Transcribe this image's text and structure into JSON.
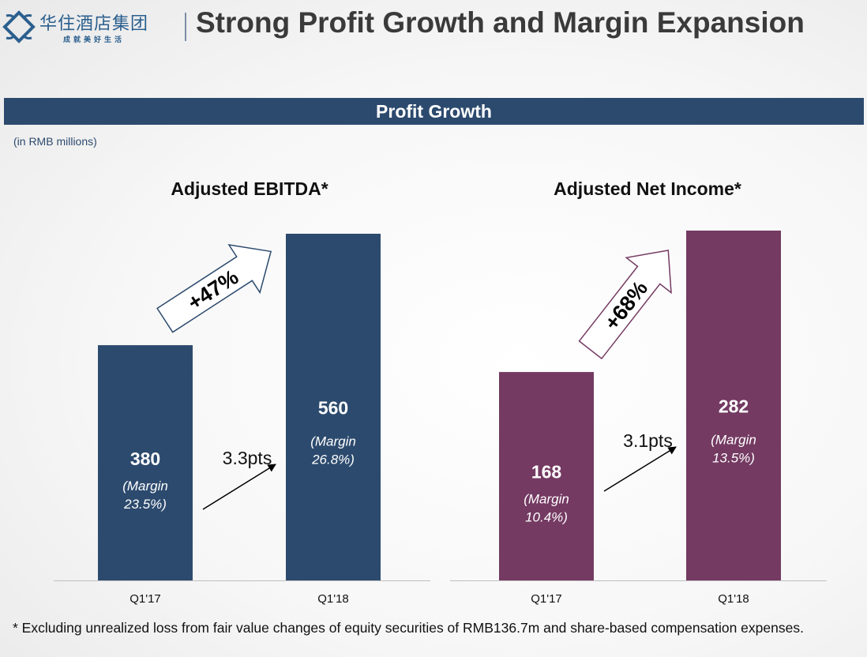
{
  "header": {
    "logo_name": "华住酒店集团",
    "logo_tagline": "成就美好生活",
    "title": "Strong Profit Growth and Margin Expansion"
  },
  "banner": {
    "label": "Profit Growth"
  },
  "units_note": "(in RMB millions)",
  "colors": {
    "banner": "#2c4a6e",
    "ebitda": "#2c4a6e",
    "net_income": "#743a62"
  },
  "chart_data": [
    {
      "type": "bar",
      "title": "Adjusted EBITDA*",
      "categories": [
        "Q1'17",
        "Q1'18"
      ],
      "values": [
        380,
        560
      ],
      "value_labels": [
        "380",
        "560"
      ],
      "margin_labels": [
        "(Margin 23.5%)",
        "(Margin 26.8%)"
      ],
      "margins_pct": [
        23.5,
        26.8
      ],
      "growth_label": "+47%",
      "margin_change_label": "3.3pts",
      "color": "#2c4a6e",
      "ylim": [
        0,
        600
      ],
      "grid": false,
      "xlabel": "",
      "ylabel": ""
    },
    {
      "type": "bar",
      "title": "Adjusted Net Income*",
      "categories": [
        "Q1'17",
        "Q1'18"
      ],
      "values": [
        168,
        282
      ],
      "value_labels": [
        "168",
        "282"
      ],
      "margin_labels": [
        "(Margin 10.4%)",
        "(Margin 13.5%)"
      ],
      "margins_pct": [
        10.4,
        13.5
      ],
      "growth_label": "+68%",
      "margin_change_label": "3.1pts",
      "color": "#743a62",
      "ylim": [
        0,
        300
      ],
      "grid": false,
      "xlabel": "",
      "ylabel": ""
    }
  ],
  "footnote": "* Excluding unrealized loss from fair value changes of equity securities of RMB136.7m and share-based compensation expenses."
}
